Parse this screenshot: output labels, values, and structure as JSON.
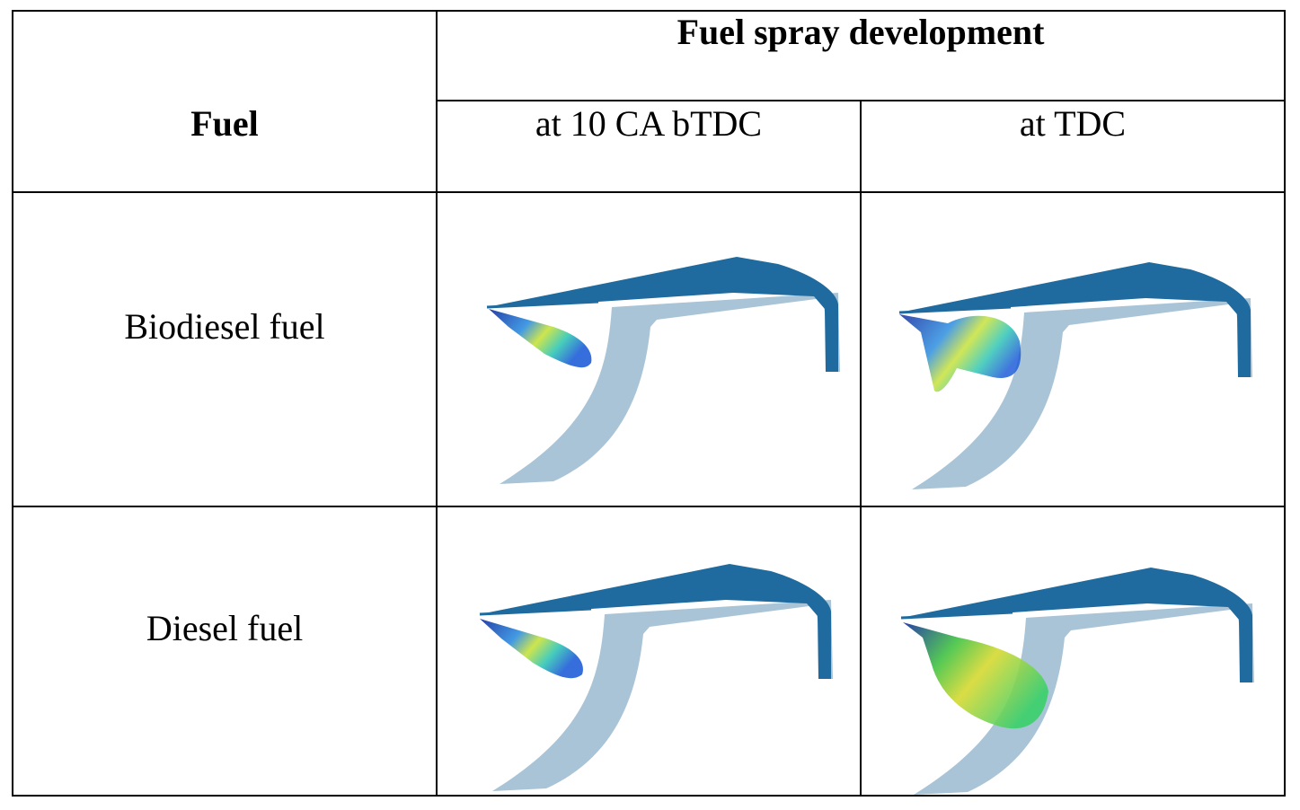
{
  "table": {
    "header": {
      "fuel": "Fuel",
      "group": "Fuel spray development",
      "columns": [
        "at 10 CA bTDC",
        "at TDC"
      ]
    },
    "rows": [
      "Biodiesel fuel",
      "Diesel fuel"
    ]
  }
}
